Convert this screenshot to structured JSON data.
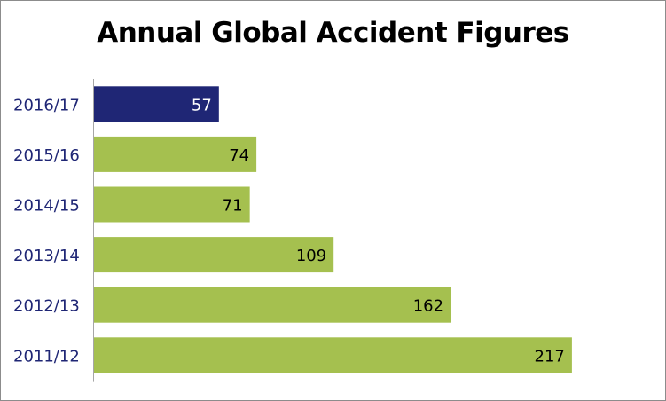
{
  "chart_data": {
    "type": "bar",
    "orientation": "horizontal",
    "title": "Annual Global Accident Figures",
    "categories": [
      "2016/17",
      "2015/16",
      "2014/15",
      "2013/14",
      "2012/13",
      "2011/12"
    ],
    "values": [
      57,
      74,
      71,
      109,
      162,
      217
    ],
    "highlight_category": "2016/17",
    "colors": {
      "highlight": "#1F2675",
      "default": "#A5C04F",
      "category_label": "#1F2675",
      "value_label_on_highlight": "#FFFFFF",
      "value_label_default": "#000000"
    },
    "xlabel": "",
    "ylabel": "",
    "xlim": [
      0,
      250
    ],
    "grid": false,
    "data_labels": true,
    "legend": "none"
  }
}
